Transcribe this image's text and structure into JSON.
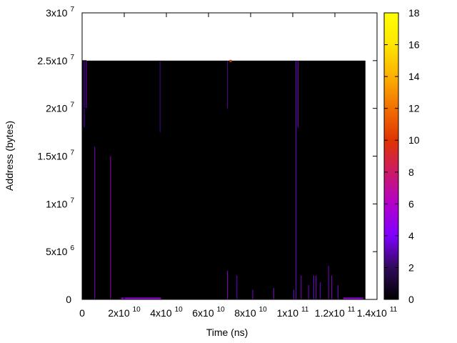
{
  "chart_data": {
    "type": "heatmap",
    "title": "",
    "xlabel": "Time (ns)",
    "ylabel": "Address (bytes)",
    "xlim": [
      0,
      140000000000
    ],
    "ylim": [
      0,
      30000000
    ],
    "x_ticks": [
      {
        "value": 0,
        "mant": "0",
        "exp": ""
      },
      {
        "value": 20000000000,
        "mant": "2x10",
        "exp": "10"
      },
      {
        "value": 40000000000,
        "mant": "4x10",
        "exp": "10"
      },
      {
        "value": 60000000000,
        "mant": "6x10",
        "exp": "10"
      },
      {
        "value": 80000000000,
        "mant": "8x10",
        "exp": "10"
      },
      {
        "value": 100000000000,
        "mant": "1x10",
        "exp": "11"
      },
      {
        "value": 120000000000,
        "mant": "1.2x10",
        "exp": "11"
      },
      {
        "value": 140000000000,
        "mant": "1.4x10",
        "exp": "11"
      }
    ],
    "y_ticks": [
      {
        "value": 0,
        "mant": "0",
        "exp": ""
      },
      {
        "value": 5000000,
        "mant": "5x10",
        "exp": "6"
      },
      {
        "value": 10000000,
        "mant": "1x10",
        "exp": "7"
      },
      {
        "value": 15000000,
        "mant": "1.5x10",
        "exp": "7"
      },
      {
        "value": 20000000,
        "mant": "2x10",
        "exp": "7"
      },
      {
        "value": 25000000,
        "mant": "2.5x10",
        "exp": "7"
      },
      {
        "value": 30000000,
        "mant": "3x10",
        "exp": "7"
      }
    ],
    "colorbar": {
      "range": [
        0,
        18
      ],
      "ticks": [
        "0",
        "2",
        "4",
        "6",
        "8",
        "10",
        "12",
        "14",
        "16",
        "18"
      ],
      "palette": [
        "#000000",
        "#300a5a",
        "#7f00ff",
        "#b300cc",
        "#cc1a66",
        "#e03300",
        "#f27000",
        "#fcb000",
        "#ffe600",
        "#ffff00"
      ]
    },
    "heatmap_extent": {
      "x": [
        0,
        134500000000
      ],
      "y": [
        0,
        25000000
      ]
    },
    "background_value": 0,
    "streaks": [
      {
        "x": 1000000000,
        "y0": 18000000,
        "y1": 25000000,
        "value": 4
      },
      {
        "x": 2000000000,
        "y0": 20000000,
        "y1": 25000000,
        "value": 5
      },
      {
        "x": 6000000000,
        "y0": 0,
        "y1": 16000000,
        "value": 5
      },
      {
        "x": 13500000000,
        "y0": 0,
        "y1": 15000000,
        "value": 6
      },
      {
        "x": 37000000000,
        "y0": 17500000,
        "y1": 25000000,
        "value": 3
      },
      {
        "x": 69000000000,
        "y0": 20000000,
        "y1": 25000000,
        "value": 3
      },
      {
        "x": 69000000000,
        "y0": 0,
        "y1": 3000000,
        "value": 5
      },
      {
        "x": 73500000000,
        "y0": 0,
        "y1": 2500000,
        "value": 4
      },
      {
        "x": 81000000000,
        "y0": 0,
        "y1": 1000000,
        "value": 5
      },
      {
        "x": 91000000000,
        "y0": 0,
        "y1": 1200000,
        "value": 5
      },
      {
        "x": 100500000000,
        "y0": 0,
        "y1": 1000000,
        "value": 4
      },
      {
        "x": 101500000000,
        "y0": 0,
        "y1": 25000000,
        "value": 4
      },
      {
        "x": 102500000000,
        "y0": 18000000,
        "y1": 25000000,
        "value": 5
      },
      {
        "x": 104000000000,
        "y0": 0,
        "y1": 2500000,
        "value": 5
      },
      {
        "x": 107500000000,
        "y0": 0,
        "y1": 1500000,
        "value": 5
      },
      {
        "x": 110000000000,
        "y0": 0,
        "y1": 2500000,
        "value": 4
      },
      {
        "x": 111000000000,
        "y0": 0,
        "y1": 2500000,
        "value": 5
      },
      {
        "x": 113000000000,
        "y0": 0,
        "y1": 1800000,
        "value": 4
      },
      {
        "x": 117000000000,
        "y0": 0,
        "y1": 3500000,
        "value": 5
      },
      {
        "x": 118500000000,
        "y0": 0,
        "y1": 2500000,
        "value": 5
      },
      {
        "x": 121500000000,
        "y0": 0,
        "y1": 1500000,
        "value": 4
      }
    ],
    "bands": [
      {
        "x0": 18500000000,
        "x1": 37500000000,
        "y0": 0,
        "y1": 200000,
        "value": 5
      },
      {
        "x0": 124000000000,
        "x1": 133500000000,
        "y0": 0,
        "y1": 200000,
        "value": 5
      }
    ],
    "hotspots": [
      {
        "x": 70500000000,
        "y": 25000000,
        "value": 10
      }
    ]
  }
}
